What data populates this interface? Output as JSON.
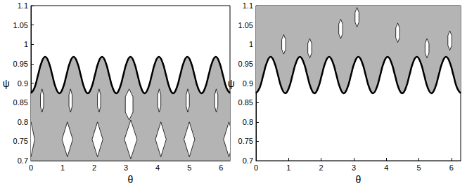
{
  "chart_data": [
    {
      "type": "scatter",
      "xlabel": "θ",
      "ylabel": "ψ",
      "xlim": [
        0,
        6.283
      ],
      "xticks": [
        0,
        1,
        2,
        3,
        4,
        5,
        6
      ],
      "ylim": [
        0.7,
        1.1
      ],
      "yticks": [
        0.7,
        0.75,
        0.8,
        0.85,
        0.9,
        0.95,
        1,
        1.05,
        1.1
      ],
      "series": [
        {
          "type": "area",
          "color": "#b4b4b4",
          "base": 0.7,
          "x": [
            0,
            0.112,
            0.224,
            0.337,
            0.449,
            0.561,
            0.673,
            0.785,
            0.898,
            1.01,
            1.122,
            1.234,
            1.346,
            1.459,
            1.571,
            1.683,
            1.795,
            1.907,
            2.02,
            2.132,
            2.244,
            2.356,
            2.468,
            2.581,
            2.693,
            2.805,
            2.917,
            3.029,
            3.142,
            3.254,
            3.366,
            3.478,
            3.59,
            3.703,
            3.815,
            3.927,
            4.039,
            4.151,
            4.264,
            4.376,
            4.488,
            4.6,
            4.712,
            4.825,
            4.937,
            5.049,
            5.161,
            5.273,
            5.386,
            5.498,
            5.61,
            5.722,
            5.834,
            5.946,
            6.059,
            6.171,
            6.283
          ],
          "values": [
            0.874,
            0.888,
            0.921,
            0.954,
            0.968,
            0.954,
            0.921,
            0.888,
            0.874,
            0.888,
            0.921,
            0.954,
            0.968,
            0.954,
            0.921,
            0.888,
            0.874,
            0.888,
            0.921,
            0.954,
            0.968,
            0.954,
            0.921,
            0.888,
            0.874,
            0.888,
            0.921,
            0.954,
            0.968,
            0.954,
            0.921,
            0.888,
            0.874,
            0.888,
            0.921,
            0.954,
            0.968,
            0.954,
            0.921,
            0.888,
            0.874,
            0.888,
            0.921,
            0.954,
            0.968,
            0.954,
            0.921,
            0.888,
            0.874,
            0.888,
            0.921,
            0.954,
            0.968,
            0.954,
            0.921,
            0.888,
            0.874
          ]
        },
        {
          "type": "polygon",
          "color": "#ffffff",
          "islands": [
            {
              "x": [
                0.35,
                0.4,
                0.4,
                0.35,
                0.3,
                0.3
              ],
              "y": [
                0.885,
                0.87,
                0.84,
                0.825,
                0.84,
                0.87
              ]
            },
            {
              "x": [
                1.25,
                1.3,
                1.3,
                1.25,
                1.2,
                1.2
              ],
              "y": [
                0.885,
                0.87,
                0.84,
                0.825,
                0.84,
                0.87
              ]
            },
            {
              "x": [
                2.15,
                2.2,
                2.2,
                2.15,
                2.1,
                2.1
              ],
              "y": [
                0.885,
                0.87,
                0.84,
                0.825,
                0.84,
                0.87
              ]
            },
            {
              "x": [
                3.1,
                3.22,
                3.22,
                3.1,
                2.98,
                2.98
              ],
              "y": [
                0.885,
                0.865,
                0.825,
                0.805,
                0.825,
                0.865
              ]
            },
            {
              "x": [
                4.05,
                4.1,
                4.1,
                4.05,
                4.0,
                4.0
              ],
              "y": [
                0.885,
                0.87,
                0.84,
                0.825,
                0.84,
                0.87
              ]
            },
            {
              "x": [
                4.95,
                5.0,
                5.0,
                4.95,
                4.9,
                4.9
              ],
              "y": [
                0.885,
                0.87,
                0.84,
                0.825,
                0.84,
                0.87
              ]
            },
            {
              "x": [
                5.85,
                5.9,
                5.9,
                5.85,
                5.8,
                5.8
              ],
              "y": [
                0.885,
                0.87,
                0.84,
                0.825,
                0.84,
                0.87
              ]
            },
            {
              "x": [
                0,
                0.12,
                0,
                -0.12
              ],
              "y": [
                0.8,
                0.755,
                0.71,
                0.755
              ]
            },
            {
              "x": [
                1.15,
                1.32,
                1.15,
                0.98
              ],
              "y": [
                0.8,
                0.755,
                0.71,
                0.755
              ]
            },
            {
              "x": [
                2.1,
                2.27,
                2.1,
                1.93
              ],
              "y": [
                0.8,
                0.755,
                0.71,
                0.755
              ]
            },
            {
              "x": [
                3.15,
                3.35,
                3.15,
                2.95
              ],
              "y": [
                0.805,
                0.755,
                0.705,
                0.755
              ]
            },
            {
              "x": [
                4.1,
                4.27,
                4.1,
                3.93
              ],
              "y": [
                0.8,
                0.755,
                0.71,
                0.755
              ]
            },
            {
              "x": [
                5.0,
                5.17,
                5.0,
                4.83
              ],
              "y": [
                0.8,
                0.755,
                0.71,
                0.755
              ]
            },
            {
              "x": [
                6.25,
                6.42,
                6.25,
                6.08
              ],
              "y": [
                0.8,
                0.755,
                0.71,
                0.755
              ]
            }
          ]
        },
        {
          "type": "line",
          "color": "#000000",
          "x": [
            0,
            0.112,
            0.224,
            0.337,
            0.449,
            0.561,
            0.673,
            0.785,
            0.898,
            1.01,
            1.122,
            1.234,
            1.346,
            1.459,
            1.571,
            1.683,
            1.795,
            1.907,
            2.02,
            2.132,
            2.244,
            2.356,
            2.468,
            2.581,
            2.693,
            2.805,
            2.917,
            3.029,
            3.142,
            3.254,
            3.366,
            3.478,
            3.59,
            3.703,
            3.815,
            3.927,
            4.039,
            4.151,
            4.264,
            4.376,
            4.488,
            4.6,
            4.712,
            4.825,
            4.937,
            5.049,
            5.161,
            5.273,
            5.386,
            5.498,
            5.61,
            5.722,
            5.834,
            5.946,
            6.059,
            6.171,
            6.283
          ],
          "values": [
            0.874,
            0.888,
            0.921,
            0.954,
            0.968,
            0.954,
            0.921,
            0.888,
            0.874,
            0.888,
            0.921,
            0.954,
            0.968,
            0.954,
            0.921,
            0.888,
            0.874,
            0.888,
            0.921,
            0.954,
            0.968,
            0.954,
            0.921,
            0.888,
            0.874,
            0.888,
            0.921,
            0.954,
            0.968,
            0.954,
            0.921,
            0.888,
            0.874,
            0.888,
            0.921,
            0.954,
            0.968,
            0.954,
            0.921,
            0.888,
            0.874,
            0.888,
            0.921,
            0.954,
            0.968,
            0.954,
            0.921,
            0.888,
            0.874,
            0.888,
            0.921,
            0.954,
            0.968,
            0.954,
            0.921,
            0.888,
            0.874
          ]
        }
      ]
    },
    {
      "type": "scatter",
      "xlabel": "θ",
      "ylabel": "ψ",
      "xlim": [
        0,
        6.283
      ],
      "xticks": [
        0,
        1,
        2,
        3,
        4,
        5,
        6
      ],
      "ylim": [
        0.7,
        1.1
      ],
      "yticks": [
        0.7,
        0.75,
        0.8,
        0.85,
        0.9,
        0.95,
        1,
        1.05,
        1.1
      ],
      "series": [
        {
          "type": "area",
          "color": "#b4b4b4",
          "base": 1.1,
          "x": [
            0,
            0.112,
            0.224,
            0.337,
            0.449,
            0.561,
            0.673,
            0.785,
            0.898,
            1.01,
            1.122,
            1.234,
            1.346,
            1.459,
            1.571,
            1.683,
            1.795,
            1.907,
            2.02,
            2.132,
            2.244,
            2.356,
            2.468,
            2.581,
            2.693,
            2.805,
            2.917,
            3.029,
            3.142,
            3.254,
            3.366,
            3.478,
            3.59,
            3.703,
            3.815,
            3.927,
            4.039,
            4.151,
            4.264,
            4.376,
            4.488,
            4.6,
            4.712,
            4.825,
            4.937,
            5.049,
            5.161,
            5.273,
            5.386,
            5.498,
            5.61,
            5.722,
            5.834,
            5.946,
            6.059,
            6.171,
            6.283
          ],
          "values": [
            0.874,
            0.888,
            0.921,
            0.954,
            0.968,
            0.954,
            0.921,
            0.888,
            0.874,
            0.888,
            0.921,
            0.954,
            0.968,
            0.954,
            0.921,
            0.888,
            0.874,
            0.888,
            0.921,
            0.954,
            0.968,
            0.954,
            0.921,
            0.888,
            0.874,
            0.888,
            0.921,
            0.954,
            0.968,
            0.954,
            0.921,
            0.888,
            0.874,
            0.888,
            0.921,
            0.954,
            0.968,
            0.954,
            0.921,
            0.888,
            0.874,
            0.888,
            0.921,
            0.954,
            0.968,
            0.954,
            0.921,
            0.888,
            0.874,
            0.888,
            0.921,
            0.954,
            0.968,
            0.954,
            0.921,
            0.888,
            0.874
          ]
        },
        {
          "type": "polygon",
          "color": "#ffffff",
          "islands": [
            {
              "x": [
                0.85,
                0.91,
                0.91,
                0.85,
                0.79,
                0.79
              ],
              "y": [
                1.025,
                1.0125,
                0.9875,
                0.975,
                0.9875,
                1.0125
              ]
            },
            {
              "x": [
                1.65,
                1.71,
                1.71,
                1.65,
                1.59,
                1.59
              ],
              "y": [
                1.015,
                1.0025,
                0.9775,
                0.965,
                0.9775,
                1.0025
              ]
            },
            {
              "x": [
                2.6,
                2.66,
                2.66,
                2.6,
                2.54,
                2.54
              ],
              "y": [
                1.065,
                1.0525,
                1.0275,
                1.015,
                1.0275,
                1.0525
              ]
            },
            {
              "x": [
                3.1,
                3.16,
                3.16,
                3.1,
                3.04,
                3.04
              ],
              "y": [
                1.095,
                1.0825,
                1.0575,
                1.045,
                1.0575,
                1.0825
              ]
            },
            {
              "x": [
                4.35,
                4.41,
                4.41,
                4.35,
                4.29,
                4.29
              ],
              "y": [
                1.055,
                1.0425,
                1.0175,
                1.005,
                1.0175,
                1.0425
              ]
            },
            {
              "x": [
                5.25,
                5.31,
                5.31,
                5.25,
                5.19,
                5.19
              ],
              "y": [
                1.015,
                1.0025,
                0.9775,
                0.965,
                0.9775,
                1.0025
              ]
            },
            {
              "x": [
                5.95,
                6.01,
                6.01,
                5.95,
                5.89,
                5.89
              ],
              "y": [
                1.035,
                1.0225,
                0.9975,
                0.985,
                0.9975,
                1.0225
              ]
            }
          ]
        },
        {
          "type": "line",
          "color": "#000000",
          "x": [
            0,
            0.112,
            0.224,
            0.337,
            0.449,
            0.561,
            0.673,
            0.785,
            0.898,
            1.01,
            1.122,
            1.234,
            1.346,
            1.459,
            1.571,
            1.683,
            1.795,
            1.907,
            2.02,
            2.132,
            2.244,
            2.356,
            2.468,
            2.581,
            2.693,
            2.805,
            2.917,
            3.029,
            3.142,
            3.254,
            3.366,
            3.478,
            3.59,
            3.703,
            3.815,
            3.927,
            4.039,
            4.151,
            4.264,
            4.376,
            4.488,
            4.6,
            4.712,
            4.825,
            4.937,
            5.049,
            5.161,
            5.273,
            5.386,
            5.498,
            5.61,
            5.722,
            5.834,
            5.946,
            6.059,
            6.171,
            6.283
          ],
          "values": [
            0.874,
            0.888,
            0.921,
            0.954,
            0.968,
            0.954,
            0.921,
            0.888,
            0.874,
            0.888,
            0.921,
            0.954,
            0.968,
            0.954,
            0.921,
            0.888,
            0.874,
            0.888,
            0.921,
            0.954,
            0.968,
            0.954,
            0.921,
            0.888,
            0.874,
            0.888,
            0.921,
            0.954,
            0.968,
            0.954,
            0.921,
            0.888,
            0.874,
            0.888,
            0.921,
            0.954,
            0.968,
            0.954,
            0.921,
            0.888,
            0.874,
            0.888,
            0.921,
            0.954,
            0.968,
            0.954,
            0.921,
            0.888,
            0.874,
            0.888,
            0.921,
            0.954,
            0.968,
            0.954,
            0.921,
            0.888,
            0.874
          ]
        }
      ]
    }
  ]
}
